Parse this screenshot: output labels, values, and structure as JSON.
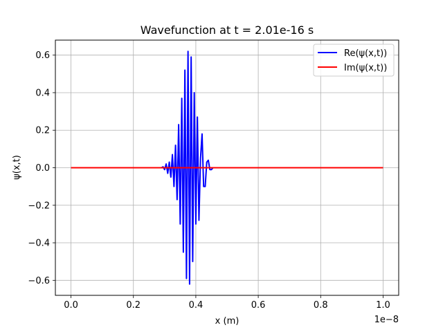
{
  "chart_data": {
    "type": "line",
    "title": "Wavefunction at t = 2.01e-16 s",
    "xlabel": "x (m)",
    "ylabel": "ψ(x,t)",
    "x_offset_label": "1e−8",
    "xlim": [
      -0.05,
      1.05
    ],
    "ylim": [
      -0.68,
      0.68
    ],
    "x_scale_factor": 1e-08,
    "x_ticks": [
      0.0,
      0.2,
      0.4,
      0.6,
      0.8,
      1.0
    ],
    "x_tick_labels": [
      "0.0",
      "0.2",
      "0.4",
      "0.6",
      "0.8",
      "1.0"
    ],
    "y_ticks": [
      -0.6,
      -0.4,
      -0.2,
      0.0,
      0.2,
      0.4,
      0.6
    ],
    "y_tick_labels": [
      "−0.6",
      "−0.4",
      "−0.2",
      "0.0",
      "0.2",
      "0.4",
      "0.6"
    ],
    "grid": true,
    "legend_position": "top-right",
    "series": [
      {
        "name": "Re(ψ(x,t))",
        "color": "#0000ff",
        "x": [
          0.0,
          0.29,
          0.295,
          0.3,
          0.305,
          0.31,
          0.315,
          0.32,
          0.325,
          0.33,
          0.335,
          0.34,
          0.345,
          0.35,
          0.355,
          0.36,
          0.365,
          0.37,
          0.375,
          0.38,
          0.385,
          0.39,
          0.395,
          0.4,
          0.405,
          0.41,
          0.415,
          0.42,
          0.425,
          0.43,
          0.435,
          0.44,
          0.445,
          0.45,
          0.455,
          0.46,
          1.0
        ],
        "y": [
          0.0,
          0.0,
          0.005,
          -0.01,
          0.02,
          -0.03,
          0.03,
          -0.05,
          0.07,
          -0.1,
          0.12,
          -0.17,
          0.23,
          -0.3,
          0.37,
          -0.45,
          0.52,
          -0.59,
          0.62,
          -0.62,
          0.59,
          -0.5,
          0.4,
          -0.3,
          0.27,
          -0.28,
          0.05,
          0.18,
          -0.1,
          -0.1,
          0.03,
          0.04,
          -0.01,
          -0.01,
          0.0,
          0.0,
          0.0
        ]
      },
      {
        "name": "Im(ψ(x,t))",
        "color": "#ff0000",
        "x": [
          0.0,
          1.0
        ],
        "y": [
          0.0,
          0.0
        ]
      }
    ]
  }
}
